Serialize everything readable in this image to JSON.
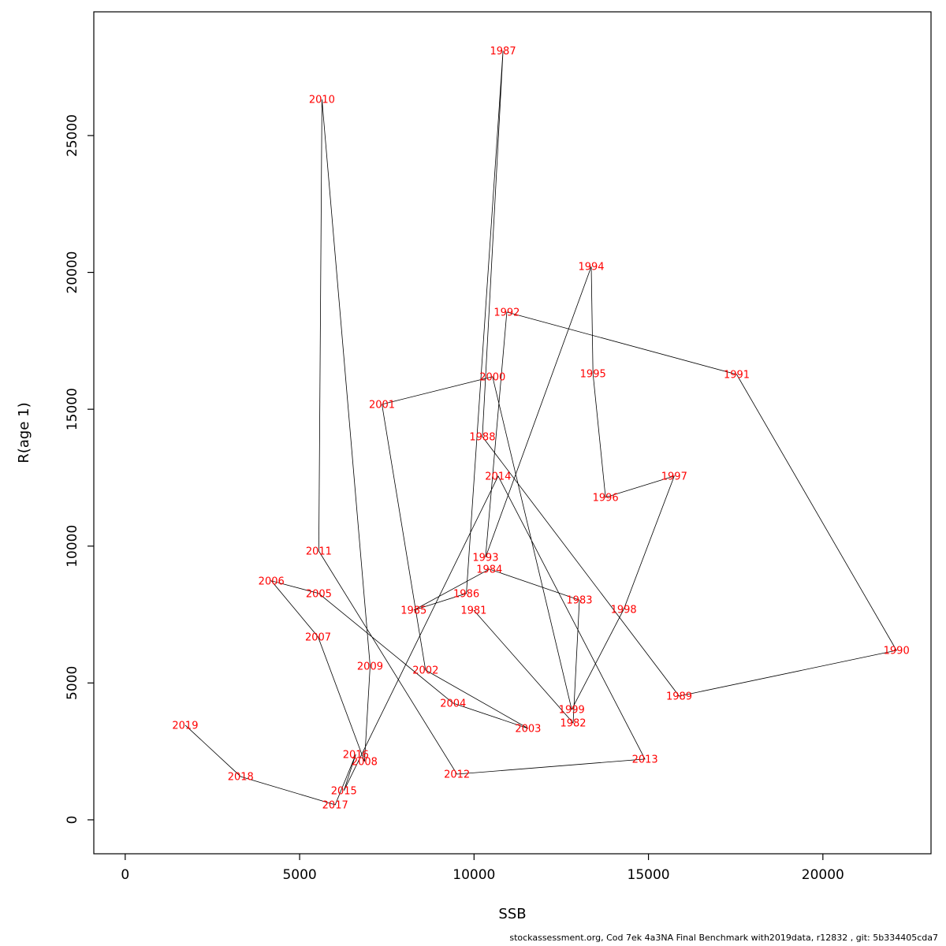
{
  "chart_data": {
    "type": "scatter",
    "title": "",
    "xlabel": "SSB",
    "ylabel": "R(age 1)",
    "xlim": [
      -900,
      23100
    ],
    "ylim": [
      -1240,
      29520
    ],
    "x_ticks": [
      0,
      5000,
      10000,
      15000,
      20000
    ],
    "y_ticks": [
      0,
      5000,
      10000,
      15000,
      20000,
      25000
    ],
    "grid": false,
    "legend": "none",
    "line_color": "#000000",
    "label_color": "#ff0000",
    "points": [
      {
        "year": "1981",
        "ssb": 9990,
        "r": 7660
      },
      {
        "year": "1982",
        "ssb": 12840,
        "r": 3540
      },
      {
        "year": "1983",
        "ssb": 13020,
        "r": 8030
      },
      {
        "year": "1984",
        "ssb": 10440,
        "r": 9160
      },
      {
        "year": "1985",
        "ssb": 8270,
        "r": 7660
      },
      {
        "year": "1986",
        "ssb": 9780,
        "r": 8270
      },
      {
        "year": "1987",
        "ssb": 10830,
        "r": 28100
      },
      {
        "year": "1988",
        "ssb": 10240,
        "r": 14000
      },
      {
        "year": "1989",
        "ssb": 15880,
        "r": 4520
      },
      {
        "year": "1990",
        "ssb": 22110,
        "r": 6190
      },
      {
        "year": "1991",
        "ssb": 17530,
        "r": 16270
      },
      {
        "year": "1992",
        "ssb": 10940,
        "r": 18550
      },
      {
        "year": "1993",
        "ssb": 10330,
        "r": 9590
      },
      {
        "year": "1994",
        "ssb": 13360,
        "r": 20210
      },
      {
        "year": "1995",
        "ssb": 13410,
        "r": 16300
      },
      {
        "year": "1996",
        "ssb": 13770,
        "r": 11780
      },
      {
        "year": "1997",
        "ssb": 15740,
        "r": 12560
      },
      {
        "year": "1998",
        "ssb": 14290,
        "r": 7690
      },
      {
        "year": "1999",
        "ssb": 12800,
        "r": 4030
      },
      {
        "year": "2000",
        "ssb": 10530,
        "r": 16190
      },
      {
        "year": "2001",
        "ssb": 7360,
        "r": 15180
      },
      {
        "year": "2002",
        "ssb": 8610,
        "r": 5470
      },
      {
        "year": "2003",
        "ssb": 11550,
        "r": 3340
      },
      {
        "year": "2004",
        "ssb": 9400,
        "r": 4260
      },
      {
        "year": "2005",
        "ssb": 5550,
        "r": 8270
      },
      {
        "year": "2006",
        "ssb": 4190,
        "r": 8730
      },
      {
        "year": "2007",
        "ssb": 5530,
        "r": 6680
      },
      {
        "year": "2008",
        "ssb": 6860,
        "r": 2130
      },
      {
        "year": "2009",
        "ssb": 7020,
        "r": 5620
      },
      {
        "year": "2010",
        "ssb": 5640,
        "r": 26320
      },
      {
        "year": "2011",
        "ssb": 5550,
        "r": 9820
      },
      {
        "year": "2012",
        "ssb": 9510,
        "r": 1670
      },
      {
        "year": "2013",
        "ssb": 14900,
        "r": 2220
      },
      {
        "year": "2014",
        "ssb": 10690,
        "r": 12560
      },
      {
        "year": "2015",
        "ssb": 6270,
        "r": 1070
      },
      {
        "year": "2016",
        "ssb": 6610,
        "r": 2390
      },
      {
        "year": "2017",
        "ssb": 6020,
        "r": 550
      },
      {
        "year": "2018",
        "ssb": 3310,
        "r": 1580
      },
      {
        "year": "2019",
        "ssb": 1720,
        "r": 3460
      }
    ]
  },
  "footer": {
    "caption": "stockassessment.org, Cod 7ek 4a3NA Final Benchmark with2019data, r12832 , git: 5b334405cda7"
  }
}
